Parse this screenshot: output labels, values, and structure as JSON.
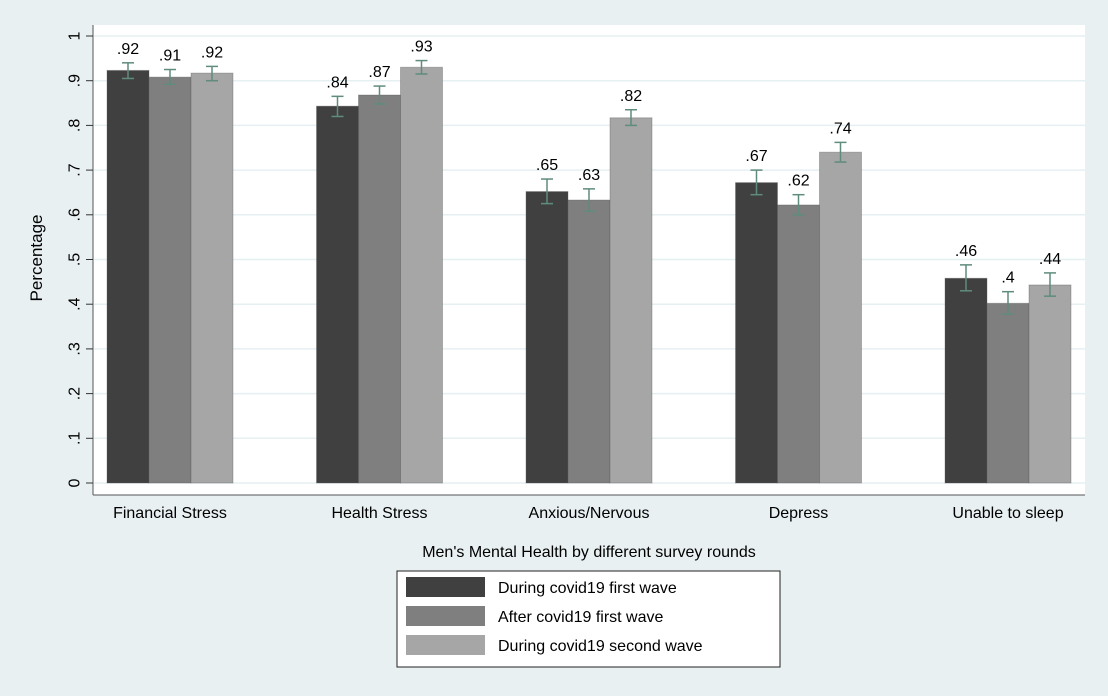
{
  "chart_data": {
    "type": "bar",
    "title": "",
    "xlabel": "Men's Mental Health by different survey rounds",
    "ylabel": "Percentage",
    "ylim": [
      0,
      1
    ],
    "yticks": [
      0,
      0.1,
      0.2,
      0.3,
      0.4,
      0.5,
      0.6,
      0.7,
      0.8,
      0.9,
      1
    ],
    "ytick_labels": [
      "0",
      ".1",
      ".2",
      ".3",
      ".4",
      ".5",
      ".6",
      ".7",
      ".8",
      ".9",
      "1"
    ],
    "grid": true,
    "categories": [
      "Financial Stress",
      "Health Stress",
      "Anxious/Nervous",
      "Depress",
      "Unable to sleep"
    ],
    "series": [
      {
        "name": "During covid19 first wave",
        "color": "#404040",
        "values": [
          0.923,
          0.843,
          0.652,
          0.672,
          0.458
        ],
        "labels": [
          ".92",
          ".84",
          ".65",
          ".67",
          ".46"
        ],
        "ci_low": [
          0.905,
          0.82,
          0.625,
          0.645,
          0.43
        ],
        "ci_high": [
          0.94,
          0.865,
          0.68,
          0.7,
          0.488
        ]
      },
      {
        "name": "After covid19 first wave",
        "color": "#7f7f7f",
        "values": [
          0.908,
          0.868,
          0.633,
          0.622,
          0.402
        ],
        "labels": [
          ".91",
          ".87",
          ".63",
          ".62",
          ".4"
        ],
        "ci_low": [
          0.892,
          0.848,
          0.608,
          0.6,
          0.378
        ],
        "ci_high": [
          0.925,
          0.888,
          0.658,
          0.645,
          0.428
        ]
      },
      {
        "name": "During covid19 second wave",
        "color": "#a6a6a6",
        "values": [
          0.917,
          0.93,
          0.817,
          0.74,
          0.443
        ],
        "labels": [
          ".92",
          ".93",
          ".82",
          ".74",
          ".44"
        ],
        "ci_low": [
          0.9,
          0.915,
          0.8,
          0.718,
          0.418
        ],
        "ci_high": [
          0.932,
          0.945,
          0.835,
          0.762,
          0.47
        ]
      }
    ],
    "error_bar_color": "#5f8c7c",
    "legend_position": "bottom"
  }
}
